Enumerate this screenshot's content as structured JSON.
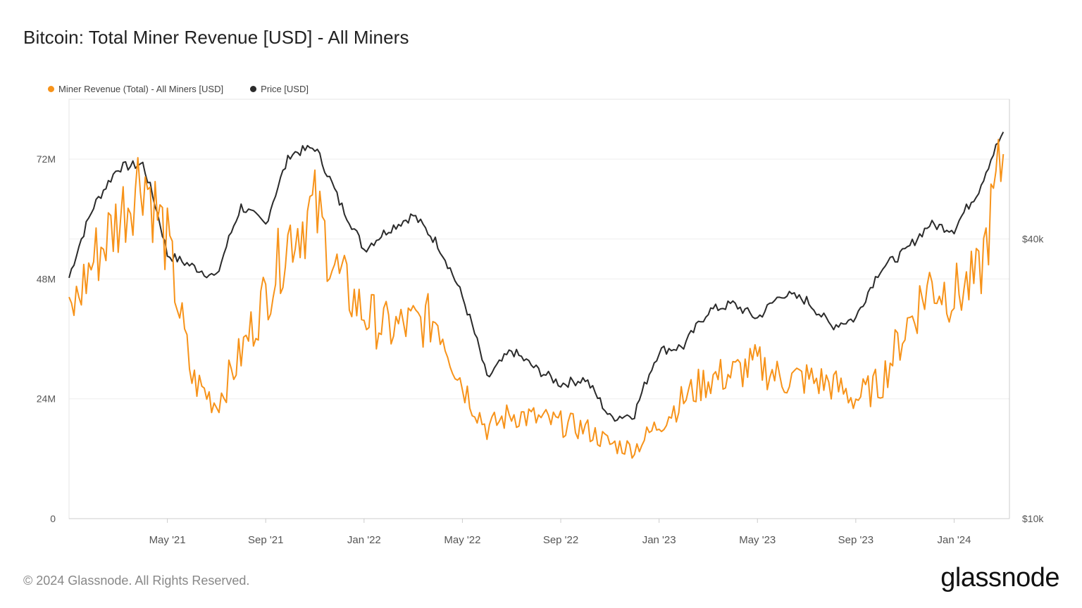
{
  "title": "Bitcoin: Total Miner Revenue [USD] - All Miners",
  "footer": "© 2024 Glassnode. All Rights Reserved.",
  "logo_text": "glassnode",
  "colors": {
    "revenue": "#f7931a",
    "price": "#2b2b2b",
    "grid": "#eeeeee",
    "axis": "#cccccc"
  },
  "chart_data": {
    "type": "line",
    "title": "Bitcoin: Total Miner Revenue [USD] - All Miners",
    "xlabel": "",
    "ylabel_left": "",
    "ylabel_right": "",
    "x_tick_labels": [
      "May '21",
      "Sep '21",
      "Jan '22",
      "May '22",
      "Sep '22",
      "Jan '23",
      "May '23",
      "Sep '23",
      "Jan '24"
    ],
    "left_axis": {
      "ticks": [
        "0",
        "24M",
        "48M",
        "72M"
      ],
      "tick_values": [
        0,
        24,
        48,
        72
      ],
      "range": [
        0,
        84
      ],
      "unit": "M USD"
    },
    "right_axis": {
      "scale": "log",
      "ticks": [
        "$10k",
        "$40k"
      ],
      "tick_values": [
        10000,
        40000
      ],
      "range": [
        10000,
        80000
      ]
    },
    "legend": [
      {
        "label": "Miner Revenue (Total) - All Miners [USD]",
        "color": "#f7931a"
      },
      {
        "label": "Price [USD]",
        "color": "#2b2b2b"
      }
    ],
    "series": [
      {
        "name": "Miner Revenue (Total) - All Miners [USD]",
        "axis": "left",
        "unit": "M USD",
        "months": [
          "Jan '21",
          "Feb '21",
          "Mar '21",
          "Apr '21",
          "May '21",
          "Jun '21",
          "Jul '21",
          "Aug '21",
          "Sep '21",
          "Oct '21",
          "Nov '21",
          "Dec '21",
          "Jan '22",
          "Feb '22",
          "Mar '22",
          "Apr '22",
          "May '22",
          "Jun '22",
          "Jul '22",
          "Aug '22",
          "Sep '22",
          "Oct '22",
          "Nov '22",
          "Dec '22",
          "Jan '23",
          "Feb '23",
          "Mar '23",
          "Apr '23",
          "May '23",
          "Jun '23",
          "Jul '23",
          "Aug '23",
          "Sep '23",
          "Oct '23",
          "Nov '23",
          "Dec '23",
          "Jan '24",
          "Feb '24",
          "Mar '24"
        ],
        "values": [
          40,
          52,
          60,
          70,
          55,
          28,
          23,
          33,
          45,
          57,
          62,
          48,
          41,
          38,
          39,
          40,
          27,
          18,
          21,
          20,
          19,
          18,
          15,
          14,
          19,
          24,
          28,
          29,
          31,
          28,
          28,
          27,
          24,
          27,
          38,
          47,
          45,
          48,
          73
        ]
      },
      {
        "name": "Price [USD]",
        "axis": "right",
        "unit": "USD",
        "months": [
          "Jan '21",
          "Feb '21",
          "Mar '21",
          "Apr '21",
          "May '21",
          "Jun '21",
          "Jul '21",
          "Aug '21",
          "Sep '21",
          "Oct '21",
          "Nov '21",
          "Dec '21",
          "Jan '22",
          "Feb '22",
          "Mar '22",
          "Apr '22",
          "May '22",
          "Jun '22",
          "Jul '22",
          "Aug '22",
          "Sep '22",
          "Oct '22",
          "Nov '22",
          "Dec '22",
          "Jan '23",
          "Feb '23",
          "Mar '23",
          "Apr '23",
          "May '23",
          "Jun '23",
          "Jul '23",
          "Aug '23",
          "Sep '23",
          "Oct '23",
          "Nov '23",
          "Dec '23",
          "Jan '24",
          "Feb '24",
          "Mar '24"
        ],
        "values": [
          33000,
          47000,
          57000,
          58000,
          37000,
          35000,
          33000,
          47000,
          43000,
          61000,
          63000,
          48000,
          38000,
          42000,
          45000,
          39000,
          30000,
          20000,
          23000,
          21000,
          19500,
          20000,
          16500,
          16800,
          23000,
          23500,
          28000,
          29000,
          27000,
          30500,
          29500,
          26000,
          27000,
          34500,
          37500,
          43000,
          42000,
          51000,
          68000
        ]
      }
    ]
  }
}
